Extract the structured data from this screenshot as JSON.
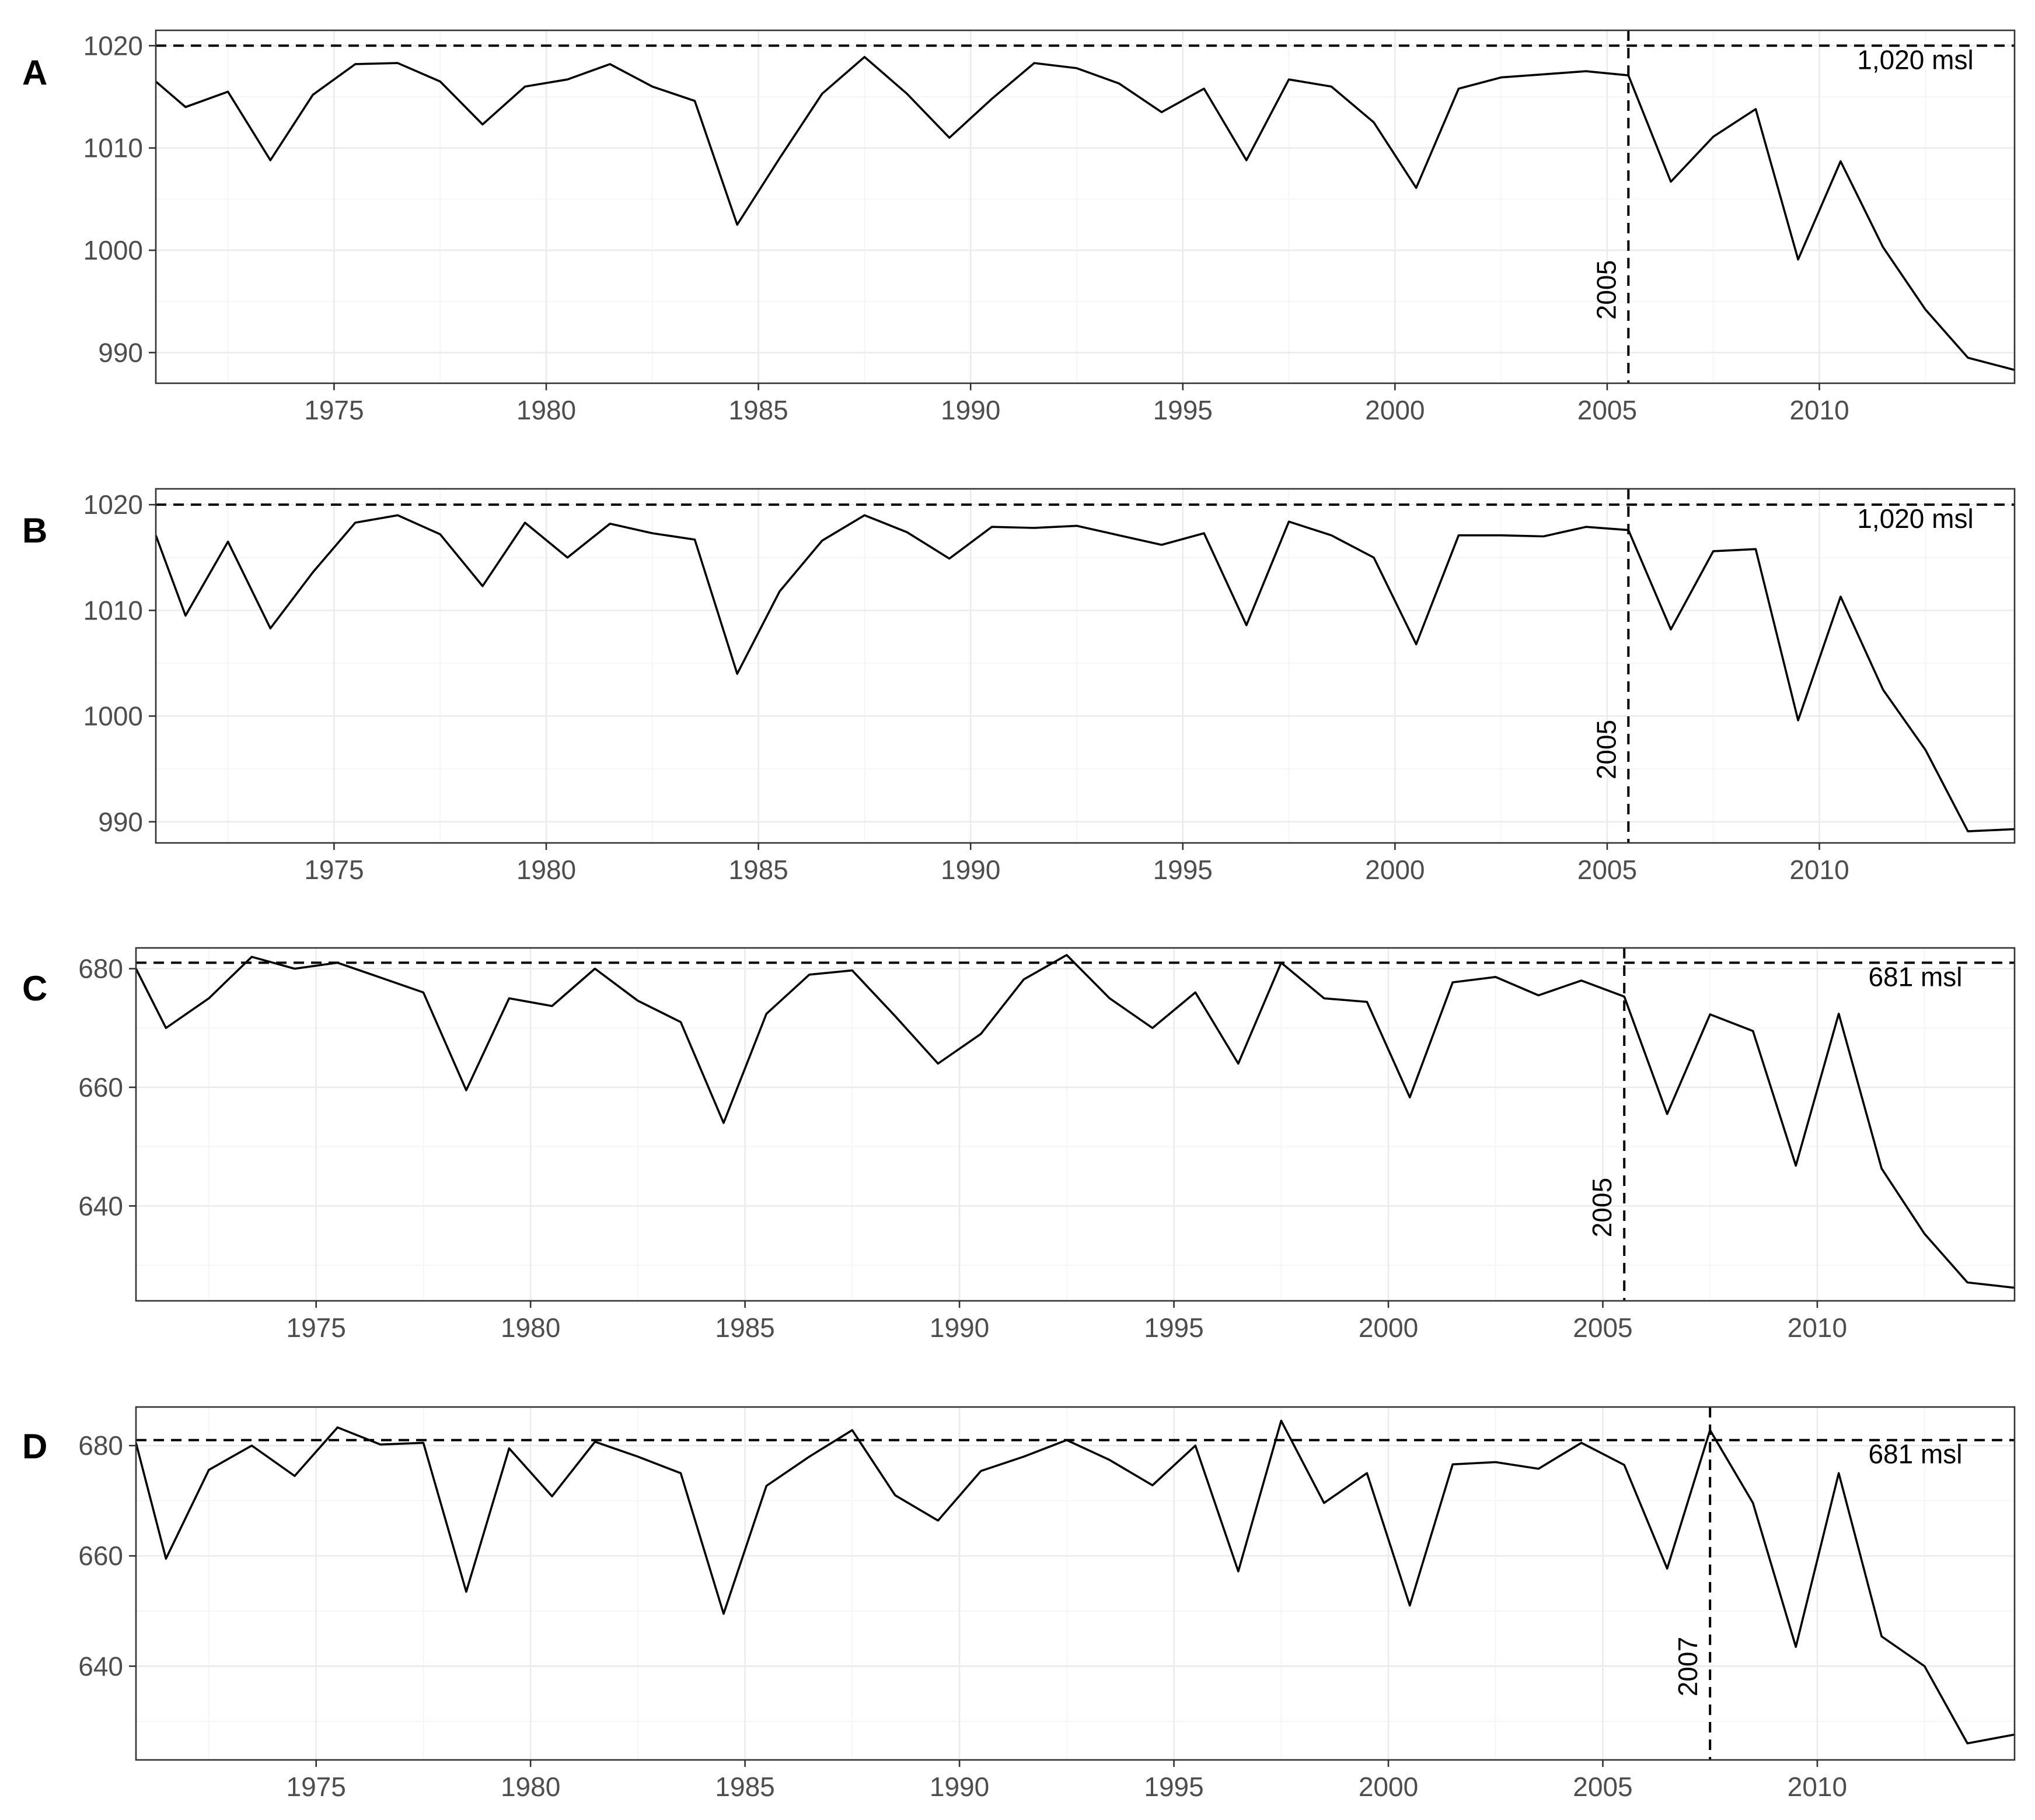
{
  "chart_data": [
    {
      "panel": "A",
      "type": "line",
      "xlim": [
        1970.8,
        2014.6
      ],
      "ylim": [
        987,
        1021.5
      ],
      "x_ticks": [
        1975,
        1980,
        1985,
        1990,
        1995,
        2000,
        2005,
        2010
      ],
      "y_ticks": [
        990,
        1000,
        1010,
        1020
      ],
      "x_tick_labels": [
        "1975",
        "1980",
        "1985",
        "1990",
        "1995",
        "2000",
        "2005",
        "2010"
      ],
      "y_tick_labels": [
        "990",
        "1000",
        "1010",
        "1020"
      ],
      "hline": {
        "y": 1020,
        "label": "1,020 msl"
      },
      "vline": {
        "x": 2005.5,
        "label": "2005"
      },
      "grid": true,
      "x": [
        1970.8,
        1971.5,
        1972.5,
        1973.5,
        1974.5,
        1975.5,
        1976.5,
        1977.5,
        1978.5,
        1979.5,
        1980.5,
        1981.5,
        1982.5,
        1983.5,
        1984.5,
        1985.5,
        1986.5,
        1987.5,
        1988.5,
        1989.5,
        1990.5,
        1991.5,
        1992.5,
        1993.5,
        1994.5,
        1995.5,
        1996.5,
        1997.5,
        1998.5,
        1999.5,
        2000.5,
        2001.5,
        2002.5,
        2003.5,
        2004.5,
        2005.5,
        2006.5,
        2007.5,
        2008.5,
        2009.5,
        2010.5,
        2011.5,
        2012.5,
        2013.5,
        2014.6
      ],
      "y": [
        1016.5,
        1014,
        1015.5,
        1008.8,
        1015.2,
        1018.2,
        1018.3,
        1016.5,
        1012.3,
        1016,
        1016.7,
        1018.2,
        1016,
        1014.6,
        1002.5,
        1009,
        1015.3,
        1018.9,
        1015.3,
        1011,
        1014.8,
        1018.3,
        1017.8,
        1016.3,
        1013.5,
        1015.8,
        1008.8,
        1016.7,
        1016,
        1012.5,
        1006.1,
        1015.8,
        1016.9,
        1017.2,
        1017.5,
        1017.1,
        1006.7,
        1011.1,
        1013.8,
        999.1,
        1008.7,
        1000.3,
        994.2,
        989.5,
        988.3
      ]
    },
    {
      "panel": "B",
      "type": "line",
      "xlim": [
        1970.8,
        2014.6
      ],
      "ylim": [
        988,
        1021.5
      ],
      "x_ticks": [
        1975,
        1980,
        1985,
        1990,
        1995,
        2000,
        2005,
        2010
      ],
      "y_ticks": [
        990,
        1000,
        1010,
        1020
      ],
      "x_tick_labels": [
        "1975",
        "1980",
        "1985",
        "1990",
        "1995",
        "2000",
        "2005",
        "2010"
      ],
      "y_tick_labels": [
        "990",
        "1000",
        "1010",
        "1020"
      ],
      "hline": {
        "y": 1020,
        "label": "1,020 msl"
      },
      "vline": {
        "x": 2005.5,
        "label": "2005"
      },
      "grid": true,
      "x": [
        1970.8,
        1971.5,
        1972.5,
        1973.5,
        1974.5,
        1975.5,
        1976.5,
        1977.5,
        1978.5,
        1979.5,
        1980.5,
        1981.5,
        1982.5,
        1983.5,
        1984.5,
        1985.5,
        1986.5,
        1987.5,
        1988.5,
        1989.5,
        1990.5,
        1991.5,
        1992.5,
        1993.5,
        1994.5,
        1995.5,
        1996.5,
        1997.5,
        1998.5,
        1999.5,
        2000.5,
        2001.5,
        2002.5,
        2003.5,
        2004.5,
        2005.5,
        2006.5,
        2007.5,
        2008.5,
        2009.5,
        2010.5,
        2011.5,
        2012.5,
        2013.5,
        2014.6
      ],
      "y": [
        1017.1,
        1009.5,
        1016.5,
        1008.3,
        1013.6,
        1018.3,
        1019,
        1017.2,
        1012.3,
        1018.3,
        1015,
        1018.2,
        1017.3,
        1016.7,
        1004,
        1011.8,
        1016.6,
        1019,
        1017.4,
        1014.9,
        1017.9,
        1017.8,
        1018,
        1017.1,
        1016.2,
        1017.3,
        1008.6,
        1018.4,
        1017.1,
        1015,
        1006.8,
        1017.1,
        1017.1,
        1017,
        1017.9,
        1017.6,
        1008.2,
        1015.6,
        1015.8,
        999.6,
        1011.3,
        1002.5,
        996.8,
        989.1,
        989.3
      ]
    },
    {
      "panel": "C",
      "type": "line",
      "xlim": [
        1970.8,
        2014.6
      ],
      "ylim": [
        624,
        683.5
      ],
      "x_ticks": [
        1975,
        1980,
        1985,
        1990,
        1995,
        2000,
        2005,
        2010
      ],
      "y_ticks": [
        640,
        660,
        680
      ],
      "x_tick_labels": [
        "1975",
        "1980",
        "1985",
        "1990",
        "1995",
        "2000",
        "2005",
        "2010"
      ],
      "y_tick_labels": [
        "640",
        "660",
        "680"
      ],
      "hline": {
        "y": 681,
        "label": "681 msl"
      },
      "vline": {
        "x": 2005.5,
        "label": "2005"
      },
      "grid": true,
      "x": [
        1970.8,
        1971.5,
        1972.5,
        1973.5,
        1974.5,
        1975.5,
        1976.5,
        1977.5,
        1978.5,
        1979.5,
        1980.5,
        1981.5,
        1982.5,
        1983.5,
        1984.5,
        1985.5,
        1986.5,
        1987.5,
        1988.5,
        1989.5,
        1990.5,
        1991.5,
        1992.5,
        1993.5,
        1994.5,
        1995.5,
        1996.5,
        1997.5,
        1998.5,
        1999.5,
        2000.5,
        2001.5,
        2002.5,
        2003.5,
        2004.5,
        2005.5,
        2006.5,
        2007.5,
        2008.5,
        2009.5,
        2010.5,
        2011.5,
        2012.5,
        2013.5,
        2014.6
      ],
      "y": [
        680,
        670,
        675,
        682,
        680,
        681,
        678.5,
        676,
        659.5,
        675,
        673.7,
        680,
        674.6,
        671,
        654,
        672.4,
        679,
        679.7,
        672,
        664,
        669,
        678.2,
        682.3,
        675,
        670,
        676,
        664,
        681,
        675,
        674.4,
        658.3,
        677.7,
        678.6,
        675.5,
        678,
        675.3,
        655.5,
        672.3,
        669.5,
        646.8,
        672.4,
        646.3,
        635.3,
        627.1,
        626.2
      ]
    },
    {
      "panel": "D",
      "type": "line",
      "xlim": [
        1970.8,
        2014.6
      ],
      "ylim": [
        623,
        687
      ],
      "x_ticks": [
        1975,
        1980,
        1985,
        1990,
        1995,
        2000,
        2005,
        2010
      ],
      "y_ticks": [
        640,
        660,
        680
      ],
      "x_tick_labels": [
        "1975",
        "1980",
        "1985",
        "1990",
        "1995",
        "2000",
        "2005",
        "2010"
      ],
      "y_tick_labels": [
        "640",
        "660",
        "680"
      ],
      "hline": {
        "y": 681,
        "label": "681 msl"
      },
      "vline": {
        "x": 2007.5,
        "label": "2007"
      },
      "grid": true,
      "x": [
        1970.8,
        1971.5,
        1972.5,
        1973.5,
        1974.5,
        1975.5,
        1976.5,
        1977.5,
        1978.5,
        1979.5,
        1980.5,
        1981.5,
        1982.5,
        1983.5,
        1984.5,
        1985.5,
        1986.5,
        1987.5,
        1988.5,
        1989.5,
        1990.5,
        1991.5,
        1992.5,
        1993.5,
        1994.5,
        1995.5,
        1996.5,
        1997.5,
        1998.5,
        1999.5,
        2000.5,
        2001.5,
        2002.5,
        2003.5,
        2004.5,
        2005.5,
        2006.5,
        2007.5,
        2008.5,
        2009.5,
        2010.5,
        2011.5,
        2012.5,
        2013.5,
        2014.6
      ],
      "y": [
        680.5,
        659.5,
        675.6,
        680,
        674.5,
        683.3,
        680.2,
        680.5,
        653.5,
        679.5,
        670.8,
        680.7,
        678,
        675,
        649.5,
        672.7,
        678,
        682.8,
        671,
        666.4,
        675.4,
        678,
        681,
        677.4,
        672.8,
        680,
        657.2,
        684.5,
        669.6,
        675,
        651,
        676.6,
        677,
        675.8,
        680.5,
        676.5,
        657.7,
        682.8,
        669.6,
        643.5,
        675,
        645.4,
        640,
        626,
        627.6
      ]
    }
  ]
}
